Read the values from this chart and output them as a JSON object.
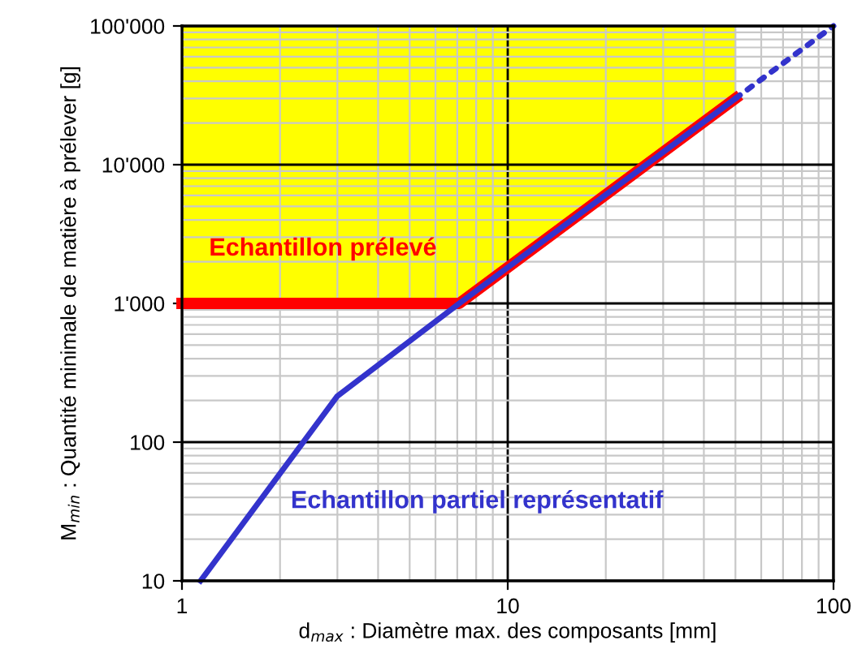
{
  "chart_data": {
    "type": "line",
    "xlabel": "d$_{max}$ : Diamètre max. des composants [mm]",
    "ylabel": "M$_{min}$ : Quantité minimale de matière à prélever [g]",
    "log": "xy",
    "grid": true,
    "xlim": [
      1,
      100
    ],
    "xticks": [
      1,
      10,
      100
    ],
    "ylim": [
      10,
      100000
    ],
    "yticks": [
      10,
      100,
      {
        "value": 1000,
        "label": "1'000"
      },
      {
        "value": 10000,
        "label": "10'000"
      },
      {
        "value": 100000,
        "label": "100'000"
      }
    ],
    "series": [
      {
        "type": "area",
        "color": "#ffff00",
        "x": [
          1,
          7.1,
          50
        ],
        "values": [
          100000,
          100000,
          100000
        ]
      },
      {
        "name": "Echantillon prélevé",
        "color": "#ff0000",
        "x": [
          1,
          7.1,
          50
        ],
        "values": [
          1000,
          1000,
          30000
        ],
        "line_style": "solid"
      },
      {
        "name": "Echantillon partiel représentatif",
        "color": "#3333cc",
        "x": [
          1.14,
          3,
          7.1,
          50
        ],
        "values": [
          10,
          215,
          1000,
          30000
        ],
        "line_style": "solid"
      },
      {
        "color": "#3333cc",
        "x": [
          50,
          100
        ],
        "values": [
          30000,
          100000
        ],
        "line_style": "dotted"
      }
    ]
  }
}
